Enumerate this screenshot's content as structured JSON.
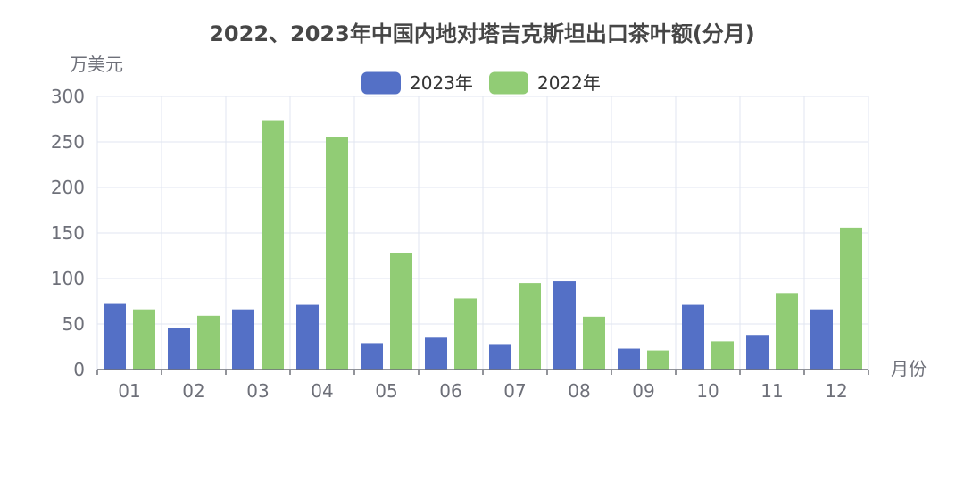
{
  "chart_data": {
    "type": "bar",
    "title": "2022、2023年中国内地对塔吉克斯坦出口茶叶额(分月)",
    "ylabel": "万美元",
    "xlabel": "月份",
    "categories": [
      "01",
      "02",
      "03",
      "04",
      "05",
      "06",
      "07",
      "08",
      "09",
      "10",
      "11",
      "12"
    ],
    "ylim": [
      0,
      300
    ],
    "yticks": [
      0,
      50,
      100,
      150,
      200,
      250,
      300
    ],
    "grid": true,
    "legend_position": "top-center",
    "series": [
      {
        "name": "2023年",
        "color": "#5470c6",
        "values": [
          72,
          46,
          66,
          71,
          29,
          35,
          28,
          97,
          23,
          71,
          38,
          66
        ]
      },
      {
        "name": "2022年",
        "color": "#91cc75",
        "values": [
          66,
          59,
          273,
          255,
          128,
          78,
          95,
          58,
          21,
          31,
          84,
          156
        ]
      }
    ]
  }
}
